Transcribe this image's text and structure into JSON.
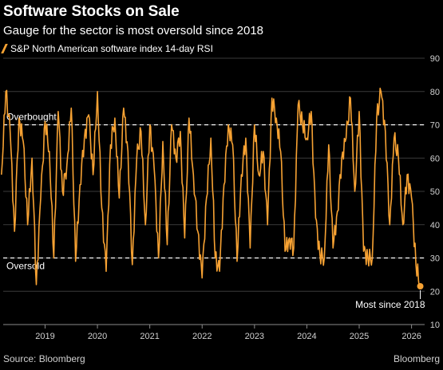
{
  "header": {
    "title": "Software Stocks on Sale",
    "subtitle": "Gauge for the sector is most oversold since 2018",
    "legend_label": "S&P North American software index 14-day RSI"
  },
  "footer": {
    "source": "Source: Bloomberg",
    "brand": "Bloomberg"
  },
  "colors": {
    "series": "#f7a233",
    "background": "#000000",
    "grid": "#3a3a3a",
    "reference": "#ffffff"
  },
  "chart_data": {
    "type": "line",
    "ylim": [
      10,
      90
    ],
    "y_ticks": [
      "90",
      "80",
      "70",
      "60",
      "50",
      "40",
      "30",
      "20",
      "10"
    ],
    "x_ticks": [
      "2019",
      "2020",
      "2021",
      "2022",
      "2023",
      "2024",
      "2025",
      "2026"
    ],
    "reference_lines": [
      {
        "label": "Overbought",
        "value": 70
      },
      {
        "label": "Oversold",
        "value": 30
      }
    ],
    "annotation": {
      "label": "Most since 2018",
      "value": 21.5
    },
    "series": [
      {
        "name": "S&P North American software index 14-day RSI",
        "points": [
          [
            "2018-03",
            55
          ],
          [
            "2018-04",
            80
          ],
          [
            "2018-05",
            68
          ],
          [
            "2018-06",
            38
          ],
          [
            "2018-07",
            72
          ],
          [
            "2018-08",
            65
          ],
          [
            "2018-09",
            40
          ],
          [
            "2018-10",
            60
          ],
          [
            "2018-11",
            22
          ],
          [
            "2018-12",
            48
          ],
          [
            "2019-01",
            71
          ],
          [
            "2019-02",
            62
          ],
          [
            "2019-03",
            30
          ],
          [
            "2019-04",
            74
          ],
          [
            "2019-05",
            50
          ],
          [
            "2019-06",
            58
          ],
          [
            "2019-07",
            75
          ],
          [
            "2019-08",
            29
          ],
          [
            "2019-09",
            52
          ],
          [
            "2019-10",
            66
          ],
          [
            "2019-11",
            73
          ],
          [
            "2019-12",
            55
          ],
          [
            "2020-01",
            80
          ],
          [
            "2020-02",
            45
          ],
          [
            "2020-03",
            26
          ],
          [
            "2020-04",
            64
          ],
          [
            "2020-05",
            72
          ],
          [
            "2020-06",
            48
          ],
          [
            "2020-07",
            75
          ],
          [
            "2020-08",
            62
          ],
          [
            "2020-09",
            28
          ],
          [
            "2020-10",
            60
          ],
          [
            "2020-11",
            68
          ],
          [
            "2020-12",
            40
          ],
          [
            "2021-01",
            70
          ],
          [
            "2021-02",
            57
          ],
          [
            "2021-03",
            30
          ],
          [
            "2021-04",
            65
          ],
          [
            "2021-05",
            34
          ],
          [
            "2021-06",
            70
          ],
          [
            "2021-07",
            60
          ],
          [
            "2021-08",
            68
          ],
          [
            "2021-09",
            36
          ],
          [
            "2021-10",
            72
          ],
          [
            "2021-11",
            55
          ],
          [
            "2021-12",
            38
          ],
          [
            "2022-01",
            24
          ],
          [
            "2022-02",
            48
          ],
          [
            "2022-03",
            66
          ],
          [
            "2022-04",
            30
          ],
          [
            "2022-05",
            26
          ],
          [
            "2022-06",
            52
          ],
          [
            "2022-07",
            70
          ],
          [
            "2022-08",
            64
          ],
          [
            "2022-09",
            29
          ],
          [
            "2022-10",
            55
          ],
          [
            "2022-11",
            66
          ],
          [
            "2022-12",
            33
          ],
          [
            "2023-01",
            70
          ],
          [
            "2023-02",
            55
          ],
          [
            "2023-03",
            62
          ],
          [
            "2023-04",
            40
          ],
          [
            "2023-05",
            78
          ],
          [
            "2023-06",
            72
          ],
          [
            "2023-07",
            62
          ],
          [
            "2023-08",
            32
          ],
          [
            "2023-09",
            36
          ],
          [
            "2023-10",
            33
          ],
          [
            "2023-11",
            76
          ],
          [
            "2023-12",
            70
          ],
          [
            "2024-01",
            66
          ],
          [
            "2024-02",
            74
          ],
          [
            "2024-03",
            42
          ],
          [
            "2024-04",
            31
          ],
          [
            "2024-05",
            30
          ],
          [
            "2024-06",
            64
          ],
          [
            "2024-07",
            33
          ],
          [
            "2024-08",
            44
          ],
          [
            "2024-09",
            60
          ],
          [
            "2024-10",
            66
          ],
          [
            "2024-11",
            78
          ],
          [
            "2024-12",
            50
          ],
          [
            "2025-01",
            74
          ],
          [
            "2025-02",
            32
          ],
          [
            "2025-03",
            30
          ],
          [
            "2025-04",
            30
          ],
          [
            "2025-05",
            72
          ],
          [
            "2025-06",
            80
          ],
          [
            "2025-07",
            68
          ],
          [
            "2025-08",
            40
          ],
          [
            "2025-09",
            66
          ],
          [
            "2025-10",
            60
          ],
          [
            "2025-11",
            40
          ],
          [
            "2025-12",
            55
          ],
          [
            "2026-01",
            48
          ],
          [
            "2026-02",
            28
          ],
          [
            "2026-03",
            21.5
          ]
        ]
      }
    ]
  }
}
